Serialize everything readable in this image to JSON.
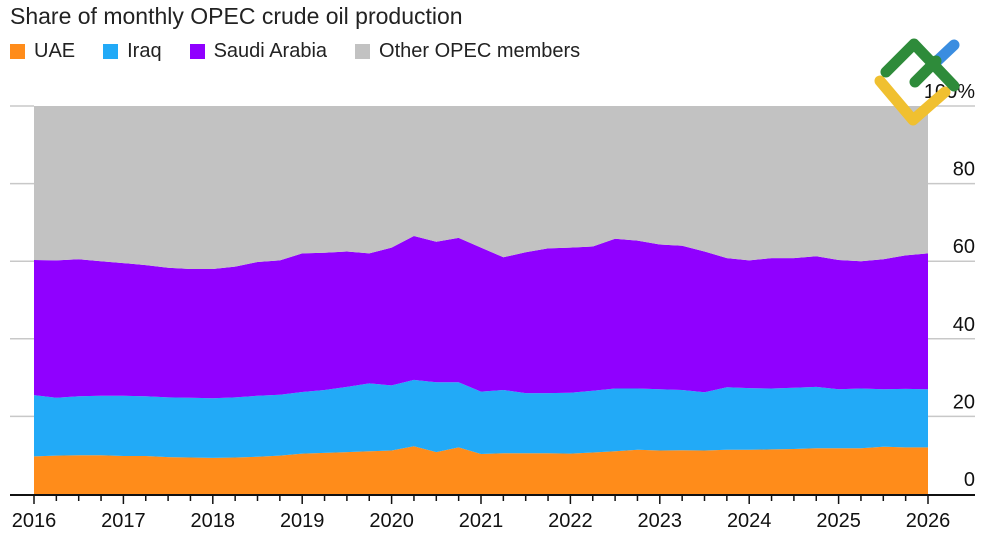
{
  "chart_data": {
    "type": "area",
    "stacked": true,
    "title": "Share of monthly OPEC crude oil production",
    "xlabel": "",
    "ylabel": "",
    "ylim": [
      0,
      100
    ],
    "xlim": [
      "2016-01",
      "2026-01"
    ],
    "y_ticks": [
      "0",
      "20",
      "40",
      "60",
      "80",
      "100%"
    ],
    "x_ticks": [
      "2016",
      "2017",
      "2018",
      "2019",
      "2020",
      "2021",
      "2022",
      "2023",
      "2024",
      "2025",
      "2026"
    ],
    "grid": "horizontal",
    "legend": "top-left",
    "x": [
      "2016-01",
      "2016-04",
      "2016-07",
      "2016-10",
      "2017-01",
      "2017-04",
      "2017-07",
      "2017-10",
      "2018-01",
      "2018-04",
      "2018-07",
      "2018-10",
      "2019-01",
      "2019-04",
      "2019-07",
      "2019-10",
      "2020-01",
      "2020-04",
      "2020-07",
      "2020-10",
      "2021-01",
      "2021-04",
      "2021-07",
      "2021-10",
      "2022-01",
      "2022-04",
      "2022-07",
      "2022-10",
      "2023-01",
      "2023-04",
      "2023-07",
      "2023-10",
      "2024-01",
      "2024-04",
      "2024-07",
      "2024-10",
      "2025-01",
      "2025-04",
      "2025-07",
      "2025-10",
      "2026-01"
    ],
    "series": [
      {
        "name": "UAE",
        "color": "#ff8c1a",
        "values": [
          9.7,
          9.9,
          10.0,
          10.0,
          9.8,
          9.8,
          9.5,
          9.4,
          9.3,
          9.4,
          9.6,
          9.9,
          10.4,
          10.6,
          10.8,
          11.0,
          11.2,
          12.3,
          10.8,
          12.0,
          10.3,
          10.5,
          10.5,
          10.5,
          10.4,
          10.7,
          11.0,
          11.4,
          11.2,
          11.3,
          11.2,
          11.4,
          11.4,
          11.5,
          11.6,
          11.8,
          11.8,
          11.8,
          12.2,
          12.0,
          12.0
        ]
      },
      {
        "name": "Iraq",
        "color": "#22aaf7",
        "values": [
          15.8,
          14.9,
          15.2,
          15.3,
          15.5,
          15.4,
          15.4,
          15.4,
          15.4,
          15.5,
          15.7,
          15.7,
          15.9,
          16.2,
          16.8,
          17.5,
          16.8,
          17.1,
          18.0,
          16.8,
          16.1,
          16.3,
          15.5,
          15.5,
          15.7,
          15.9,
          16.2,
          15.8,
          15.8,
          15.5,
          15.0,
          16.1,
          15.9,
          15.7,
          15.8,
          15.8,
          15.2,
          15.4,
          14.8,
          15.1,
          15.0
        ]
      },
      {
        "name": "Saudi Arabia",
        "color": "#9000ff",
        "values": [
          34.8,
          35.4,
          35.3,
          34.7,
          34.2,
          33.8,
          33.4,
          33.2,
          33.3,
          33.7,
          34.5,
          34.6,
          35.7,
          35.4,
          34.9,
          33.5,
          35.5,
          37.1,
          36.2,
          37.2,
          37.1,
          34.2,
          36.3,
          37.3,
          37.4,
          37.2,
          38.6,
          38.1,
          37.3,
          37.2,
          36.3,
          33.3,
          32.9,
          33.6,
          33.4,
          33.7,
          33.3,
          32.8,
          33.5,
          34.4,
          35.0
        ]
      },
      {
        "name": "Other OPEC members",
        "color": "#c2c2c2",
        "values": [
          39.7,
          39.8,
          39.5,
          40.0,
          40.5,
          41.0,
          41.7,
          42.0,
          42.0,
          41.4,
          40.2,
          39.8,
          38.0,
          37.8,
          37.5,
          38.0,
          36.5,
          33.5,
          35.0,
          34.0,
          36.5,
          39.0,
          37.7,
          36.7,
          36.5,
          36.2,
          34.2,
          34.7,
          35.7,
          36.0,
          37.5,
          39.2,
          39.8,
          39.2,
          39.2,
          38.7,
          39.7,
          40.0,
          39.5,
          38.5,
          38.0
        ]
      }
    ]
  },
  "logo": {
    "name": "brand-logo",
    "colors": [
      "#2e8b3a",
      "#f0c030",
      "#3a8de0"
    ]
  }
}
